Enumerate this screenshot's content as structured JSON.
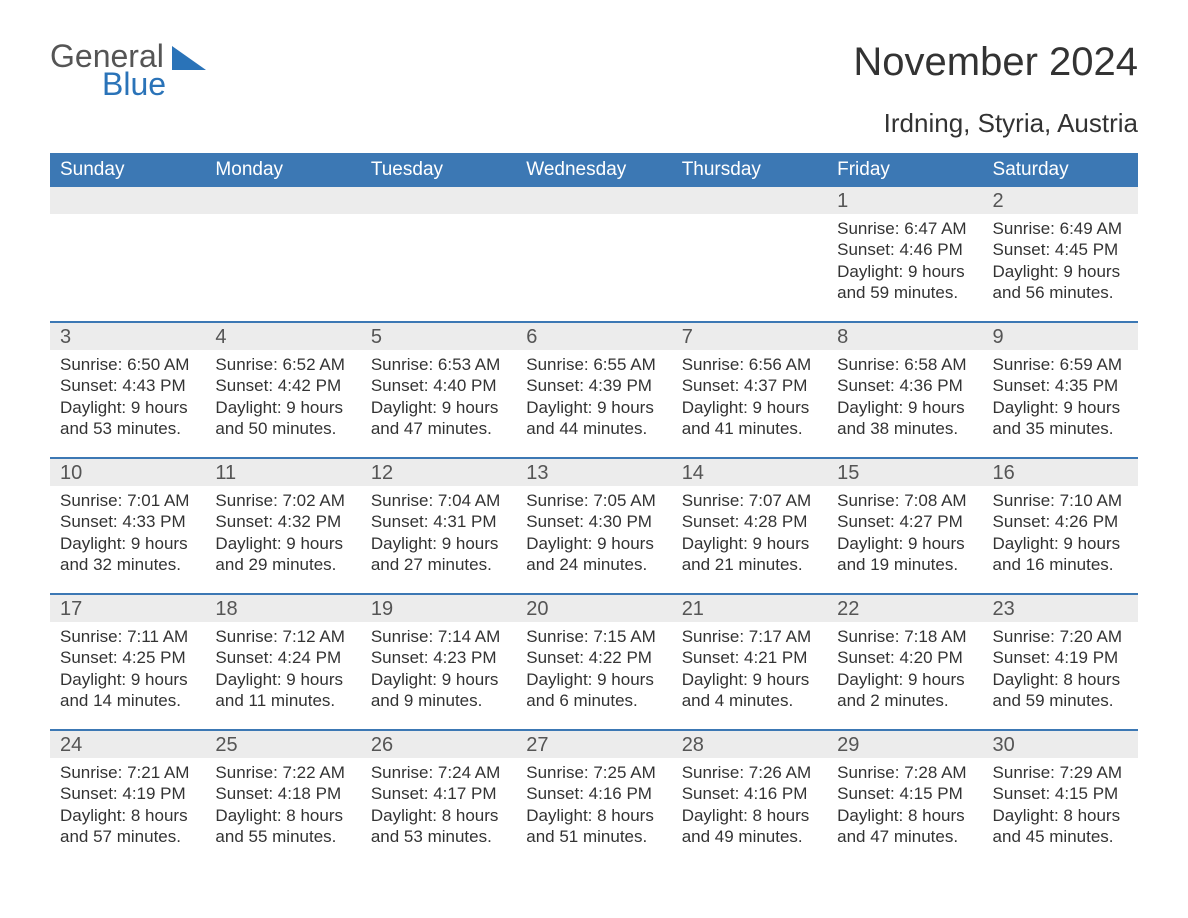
{
  "logo": {
    "general": "General",
    "blue": "Blue"
  },
  "title": "November 2024",
  "location": "Irdning, Styria, Austria",
  "colors": {
    "header_bg": "#3c78b4",
    "header_text": "#ffffff",
    "daynum_bg": "#ececec",
    "week_divider": "#3c78b4",
    "body_text": "#333333",
    "logo_blue": "#2a73b8",
    "logo_gray": "#555555",
    "page_bg": "#ffffff"
  },
  "typography": {
    "title_fontsize": 40,
    "location_fontsize": 26,
    "dayhead_fontsize": 19,
    "daynum_fontsize": 20,
    "cell_fontsize": 17,
    "logo_fontsize": 32
  },
  "dayNames": [
    "Sunday",
    "Monday",
    "Tuesday",
    "Wednesday",
    "Thursday",
    "Friday",
    "Saturday"
  ],
  "weeks": [
    {
      "nums": [
        "",
        "",
        "",
        "",
        "",
        "1",
        "2"
      ],
      "cells": [
        null,
        null,
        null,
        null,
        null,
        {
          "sunrise": "Sunrise: 6:47 AM",
          "sunset": "Sunset: 4:46 PM",
          "dl1": "Daylight: 9 hours",
          "dl2": "and 59 minutes."
        },
        {
          "sunrise": "Sunrise: 6:49 AM",
          "sunset": "Sunset: 4:45 PM",
          "dl1": "Daylight: 9 hours",
          "dl2": "and 56 minutes."
        }
      ]
    },
    {
      "nums": [
        "3",
        "4",
        "5",
        "6",
        "7",
        "8",
        "9"
      ],
      "cells": [
        {
          "sunrise": "Sunrise: 6:50 AM",
          "sunset": "Sunset: 4:43 PM",
          "dl1": "Daylight: 9 hours",
          "dl2": "and 53 minutes."
        },
        {
          "sunrise": "Sunrise: 6:52 AM",
          "sunset": "Sunset: 4:42 PM",
          "dl1": "Daylight: 9 hours",
          "dl2": "and 50 minutes."
        },
        {
          "sunrise": "Sunrise: 6:53 AM",
          "sunset": "Sunset: 4:40 PM",
          "dl1": "Daylight: 9 hours",
          "dl2": "and 47 minutes."
        },
        {
          "sunrise": "Sunrise: 6:55 AM",
          "sunset": "Sunset: 4:39 PM",
          "dl1": "Daylight: 9 hours",
          "dl2": "and 44 minutes."
        },
        {
          "sunrise": "Sunrise: 6:56 AM",
          "sunset": "Sunset: 4:37 PM",
          "dl1": "Daylight: 9 hours",
          "dl2": "and 41 minutes."
        },
        {
          "sunrise": "Sunrise: 6:58 AM",
          "sunset": "Sunset: 4:36 PM",
          "dl1": "Daylight: 9 hours",
          "dl2": "and 38 minutes."
        },
        {
          "sunrise": "Sunrise: 6:59 AM",
          "sunset": "Sunset: 4:35 PM",
          "dl1": "Daylight: 9 hours",
          "dl2": "and 35 minutes."
        }
      ]
    },
    {
      "nums": [
        "10",
        "11",
        "12",
        "13",
        "14",
        "15",
        "16"
      ],
      "cells": [
        {
          "sunrise": "Sunrise: 7:01 AM",
          "sunset": "Sunset: 4:33 PM",
          "dl1": "Daylight: 9 hours",
          "dl2": "and 32 minutes."
        },
        {
          "sunrise": "Sunrise: 7:02 AM",
          "sunset": "Sunset: 4:32 PM",
          "dl1": "Daylight: 9 hours",
          "dl2": "and 29 minutes."
        },
        {
          "sunrise": "Sunrise: 7:04 AM",
          "sunset": "Sunset: 4:31 PM",
          "dl1": "Daylight: 9 hours",
          "dl2": "and 27 minutes."
        },
        {
          "sunrise": "Sunrise: 7:05 AM",
          "sunset": "Sunset: 4:30 PM",
          "dl1": "Daylight: 9 hours",
          "dl2": "and 24 minutes."
        },
        {
          "sunrise": "Sunrise: 7:07 AM",
          "sunset": "Sunset: 4:28 PM",
          "dl1": "Daylight: 9 hours",
          "dl2": "and 21 minutes."
        },
        {
          "sunrise": "Sunrise: 7:08 AM",
          "sunset": "Sunset: 4:27 PM",
          "dl1": "Daylight: 9 hours",
          "dl2": "and 19 minutes."
        },
        {
          "sunrise": "Sunrise: 7:10 AM",
          "sunset": "Sunset: 4:26 PM",
          "dl1": "Daylight: 9 hours",
          "dl2": "and 16 minutes."
        }
      ]
    },
    {
      "nums": [
        "17",
        "18",
        "19",
        "20",
        "21",
        "22",
        "23"
      ],
      "cells": [
        {
          "sunrise": "Sunrise: 7:11 AM",
          "sunset": "Sunset: 4:25 PM",
          "dl1": "Daylight: 9 hours",
          "dl2": "and 14 minutes."
        },
        {
          "sunrise": "Sunrise: 7:12 AM",
          "sunset": "Sunset: 4:24 PM",
          "dl1": "Daylight: 9 hours",
          "dl2": "and 11 minutes."
        },
        {
          "sunrise": "Sunrise: 7:14 AM",
          "sunset": "Sunset: 4:23 PM",
          "dl1": "Daylight: 9 hours",
          "dl2": "and 9 minutes."
        },
        {
          "sunrise": "Sunrise: 7:15 AM",
          "sunset": "Sunset: 4:22 PM",
          "dl1": "Daylight: 9 hours",
          "dl2": "and 6 minutes."
        },
        {
          "sunrise": "Sunrise: 7:17 AM",
          "sunset": "Sunset: 4:21 PM",
          "dl1": "Daylight: 9 hours",
          "dl2": "and 4 minutes."
        },
        {
          "sunrise": "Sunrise: 7:18 AM",
          "sunset": "Sunset: 4:20 PM",
          "dl1": "Daylight: 9 hours",
          "dl2": "and 2 minutes."
        },
        {
          "sunrise": "Sunrise: 7:20 AM",
          "sunset": "Sunset: 4:19 PM",
          "dl1": "Daylight: 8 hours",
          "dl2": "and 59 minutes."
        }
      ]
    },
    {
      "nums": [
        "24",
        "25",
        "26",
        "27",
        "28",
        "29",
        "30"
      ],
      "cells": [
        {
          "sunrise": "Sunrise: 7:21 AM",
          "sunset": "Sunset: 4:19 PM",
          "dl1": "Daylight: 8 hours",
          "dl2": "and 57 minutes."
        },
        {
          "sunrise": "Sunrise: 7:22 AM",
          "sunset": "Sunset: 4:18 PM",
          "dl1": "Daylight: 8 hours",
          "dl2": "and 55 minutes."
        },
        {
          "sunrise": "Sunrise: 7:24 AM",
          "sunset": "Sunset: 4:17 PM",
          "dl1": "Daylight: 8 hours",
          "dl2": "and 53 minutes."
        },
        {
          "sunrise": "Sunrise: 7:25 AM",
          "sunset": "Sunset: 4:16 PM",
          "dl1": "Daylight: 8 hours",
          "dl2": "and 51 minutes."
        },
        {
          "sunrise": "Sunrise: 7:26 AM",
          "sunset": "Sunset: 4:16 PM",
          "dl1": "Daylight: 8 hours",
          "dl2": "and 49 minutes."
        },
        {
          "sunrise": "Sunrise: 7:28 AM",
          "sunset": "Sunset: 4:15 PM",
          "dl1": "Daylight: 8 hours",
          "dl2": "and 47 minutes."
        },
        {
          "sunrise": "Sunrise: 7:29 AM",
          "sunset": "Sunset: 4:15 PM",
          "dl1": "Daylight: 8 hours",
          "dl2": "and 45 minutes."
        }
      ]
    }
  ]
}
